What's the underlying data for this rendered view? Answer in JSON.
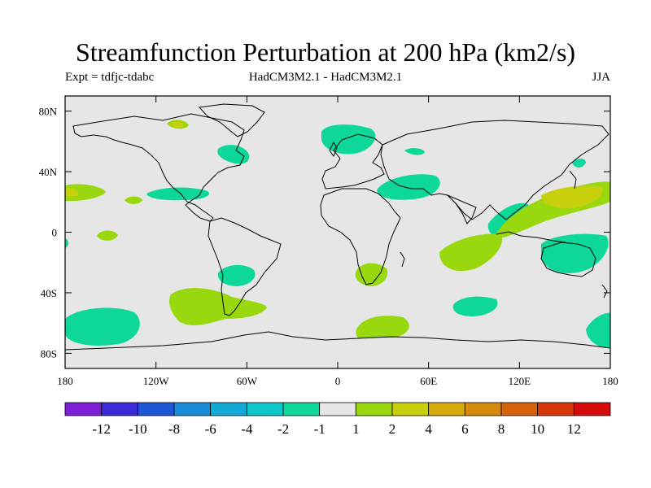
{
  "title": "Streamfunction Perturbation at 200 hPa (km2/s)",
  "experiment": "Expt = tdfjc-tdabc",
  "model": "HadCM3M2.1 - HadCM3M2.1",
  "season": "JJA",
  "axes": {
    "lon_ticks": [
      {
        "value": -180,
        "label": "180"
      },
      {
        "value": -120,
        "label": "120W"
      },
      {
        "value": -60,
        "label": "60W"
      },
      {
        "value": 0,
        "label": "0"
      },
      {
        "value": 60,
        "label": "60E"
      },
      {
        "value": 120,
        "label": "120E"
      },
      {
        "value": 180,
        "label": "180"
      }
    ],
    "lat_ticks": [
      {
        "value": 80,
        "label": "80N"
      },
      {
        "value": 40,
        "label": "40N"
      },
      {
        "value": 0,
        "label": "0"
      },
      {
        "value": -40,
        "label": "40S"
      },
      {
        "value": -80,
        "label": "80S"
      }
    ],
    "lon_range": [
      -180,
      180
    ],
    "lat_range": [
      -90,
      90
    ]
  },
  "colorbar": {
    "colors": [
      "#7f1fd7",
      "#3a2ad8",
      "#1f56d8",
      "#1a8bd6",
      "#12aad6",
      "#0fc6cc",
      "#0dd899",
      "#e6e6e6",
      "#99d80f",
      "#c8d00b",
      "#d6aa0b",
      "#d68a0b",
      "#d6620b",
      "#d6380b",
      "#d60b0b"
    ],
    "labels": [
      "-12",
      "-10",
      "-8",
      "-6",
      "-4",
      "-2",
      "-1",
      "1",
      "2",
      "4",
      "6",
      "8",
      "10",
      "12"
    ]
  },
  "fill_colors": {
    "background": "#e6e6e6",
    "neg1": "#0dd899",
    "pos1": "#99d80f",
    "pos2": "#c8d00b"
  }
}
